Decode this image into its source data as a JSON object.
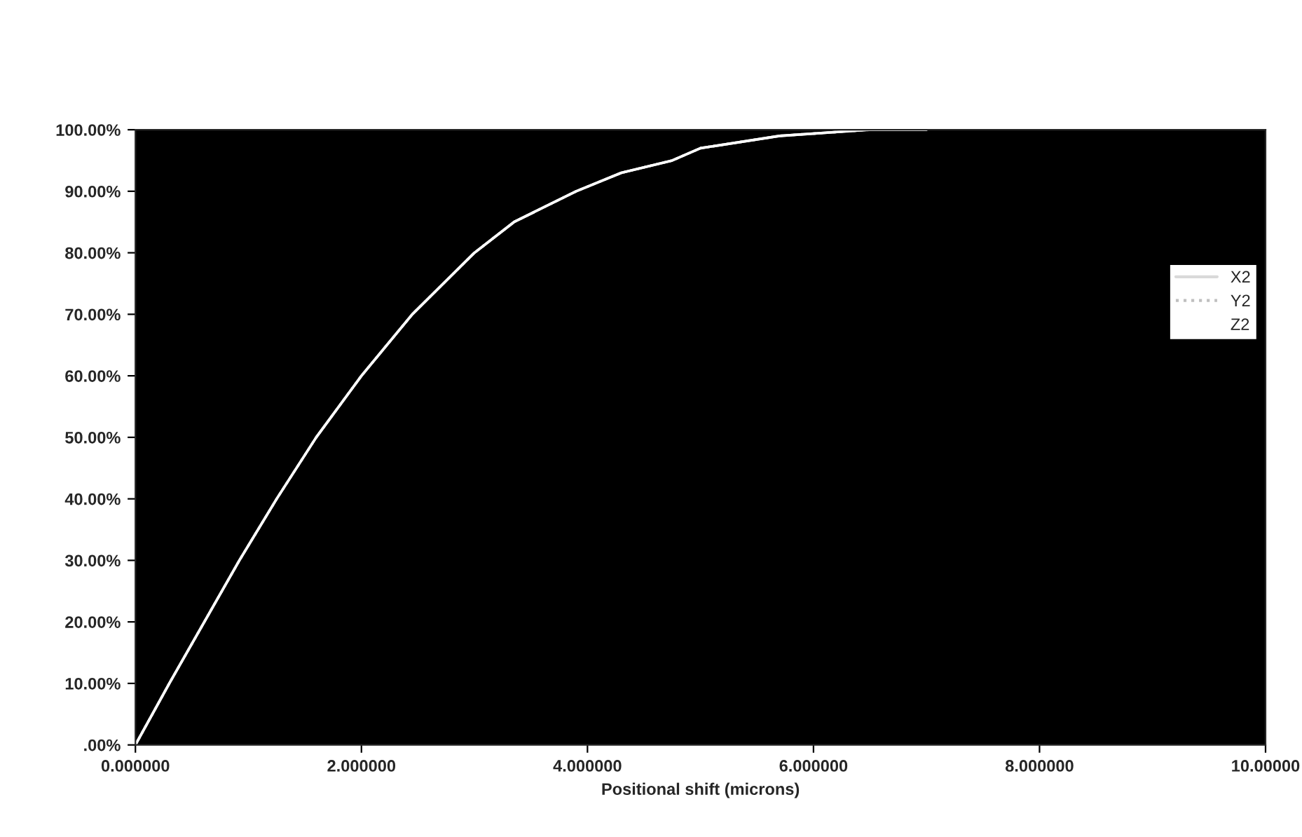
{
  "chart_data": {
    "type": "line",
    "xlabel": "Positional shift (microns)",
    "x": [
      0,
      0.3,
      0.61,
      0.92,
      1.25,
      1.6,
      2.0,
      2.45,
      3.0,
      3.35,
      3.9,
      4.3,
      4.75,
      5.0,
      5.7,
      6.5,
      7.0
    ],
    "series": [
      {
        "name": "X2",
        "color": "#d9d9d9",
        "line_style": "solid",
        "values": [
          0,
          10,
          20,
          30,
          40,
          50,
          60,
          70,
          80,
          85,
          90,
          93,
          95,
          97,
          99,
          100,
          100
        ]
      },
      {
        "name": "Y2",
        "color": "#bfbfbf",
        "line_style": "dotted",
        "values": [
          0,
          10,
          20,
          30,
          40,
          50,
          60,
          70,
          80,
          85,
          90,
          93,
          95,
          97,
          99,
          100,
          100
        ]
      },
      {
        "name": "Z2",
        "color": "#ffffff",
        "line_style": "solid",
        "values": [
          0,
          10,
          20,
          30,
          40,
          50,
          60,
          70,
          80,
          85,
          90,
          93,
          95,
          97,
          99,
          100,
          100
        ]
      }
    ],
    "xlim": [
      0,
      10
    ],
    "ylim": [
      0,
      100
    ],
    "xticks": [
      {
        "value": 0,
        "label": "0.000000"
      },
      {
        "value": 2,
        "label": "2.000000"
      },
      {
        "value": 4,
        "label": "4.000000"
      },
      {
        "value": 6,
        "label": "6.000000"
      },
      {
        "value": 8,
        "label": "8.000000"
      },
      {
        "value": 10,
        "label": "10.00000"
      }
    ],
    "yticks": [
      {
        "value": 0,
        "label": ".00%"
      },
      {
        "value": 10,
        "label": "10.00%"
      },
      {
        "value": 20,
        "label": "20.00%"
      },
      {
        "value": 30,
        "label": "30.00%"
      },
      {
        "value": 40,
        "label": "40.00%"
      },
      {
        "value": 50,
        "label": "50.00%"
      },
      {
        "value": 60,
        "label": "60.00%"
      },
      {
        "value": 70,
        "label": "70.00%"
      },
      {
        "value": 80,
        "label": "80.00%"
      },
      {
        "value": 90,
        "label": "90.00%"
      },
      {
        "value": 100,
        "label": "100.00%"
      }
    ],
    "grid": false,
    "legend": "right",
    "marker": "none"
  }
}
